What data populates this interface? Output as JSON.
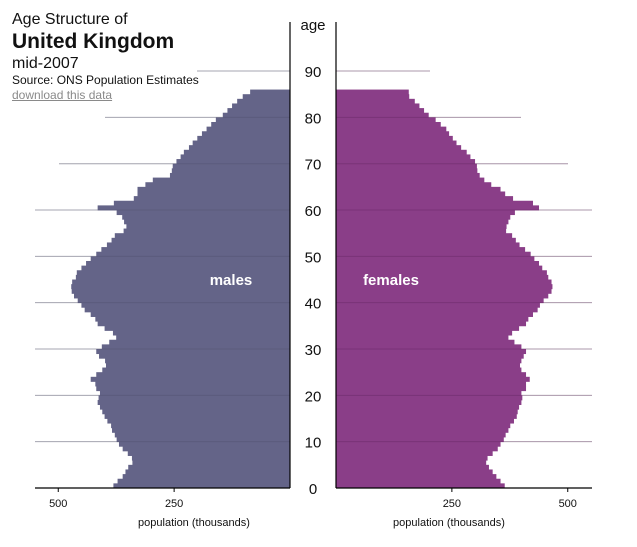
{
  "header": {
    "title_line1": "Age Structure of",
    "title_line2": "United Kingdom",
    "title_line3": "mid-2007",
    "source": "Source: ONS Population Estimates",
    "download_link": "download this data"
  },
  "colors": {
    "males": "#646488",
    "females": "#8a3e88",
    "grid": "#d8d8d8",
    "axis": "#000000"
  },
  "chart_data": {
    "type": "bar",
    "subtype": "population-pyramid",
    "title": "Age Structure of United Kingdom mid-2007",
    "subtitle": "Source: ONS Population Estimates",
    "xlabel": "population (thousands)",
    "ylabel": "age",
    "xlim": [
      0,
      550
    ],
    "x_ticks": [
      500,
      250
    ],
    "y_ticks": [
      0,
      10,
      20,
      30,
      40,
      50,
      60,
      70,
      80,
      90
    ],
    "series_labels": {
      "males": "males",
      "females": "females"
    },
    "ages": [
      0,
      1,
      2,
      3,
      4,
      5,
      6,
      7,
      8,
      9,
      10,
      11,
      12,
      13,
      14,
      15,
      16,
      17,
      18,
      19,
      20,
      21,
      22,
      23,
      24,
      25,
      26,
      27,
      28,
      29,
      30,
      31,
      32,
      33,
      34,
      35,
      36,
      37,
      38,
      39,
      40,
      41,
      42,
      43,
      44,
      45,
      46,
      47,
      48,
      49,
      50,
      51,
      52,
      53,
      54,
      55,
      56,
      57,
      58,
      59,
      60,
      61,
      62,
      63,
      64,
      65,
      66,
      67,
      68,
      69,
      70,
      71,
      72,
      73,
      74,
      75,
      76,
      77,
      78,
      79,
      80,
      81,
      82,
      83,
      84,
      "85+"
    ],
    "series": [
      {
        "name": "males",
        "values": [
          381,
          372,
          361,
          355,
          349,
          340,
          341,
          350,
          361,
          369,
          374,
          378,
          384,
          386,
          394,
          400,
          405,
          410,
          415,
          413,
          410,
          418,
          420,
          430,
          418,
          405,
          397,
          399,
          412,
          418,
          406,
          390,
          375,
          382,
          400,
          415,
          420,
          430,
          443,
          450,
          458,
          466,
          471,
          472,
          470,
          462,
          460,
          450,
          440,
          430,
          418,
          407,
          395,
          385,
          378,
          359,
          353,
          358,
          362,
          374,
          415,
          380,
          337,
          329,
          329,
          312,
          296,
          259,
          255,
          253,
          245,
          236,
          229,
          218,
          210,
          200,
          190,
          180,
          170,
          160,
          145,
          135,
          125,
          114,
          102,
          86
        ]
      },
      {
        "name": "females",
        "values": [
          364,
          355,
          346,
          338,
          330,
          324,
          327,
          338,
          349,
          355,
          362,
          366,
          372,
          376,
          384,
          390,
          392,
          395,
          400,
          402,
          400,
          410,
          410,
          418,
          410,
          400,
          397,
          400,
          405,
          410,
          400,
          385,
          372,
          380,
          395,
          410,
          415,
          425,
          435,
          440,
          448,
          458,
          465,
          467,
          465,
          458,
          455,
          445,
          438,
          428,
          420,
          408,
          396,
          388,
          380,
          367,
          368,
          372,
          376,
          386,
          438,
          425,
          382,
          365,
          355,
          335,
          320,
          310,
          305,
          304,
          300,
          290,
          282,
          270,
          260,
          252,
          244,
          238,
          226,
          215,
          200,
          190,
          180,
          170,
          158,
          157
        ]
      }
    ]
  }
}
